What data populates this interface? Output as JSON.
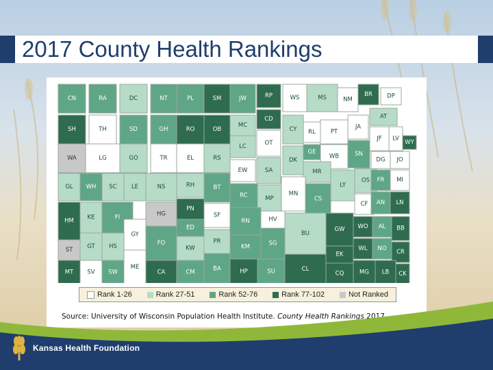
{
  "slide": {
    "title": "2017 County Health Rankings",
    "source_prefix": "Source: University of Wisconsin Population Health Institute.",
    "source_italic": "County Health Rankings",
    "source_year": "2017",
    "org_name": "Kansas Health Foundation",
    "colors": {
      "title_blue": "#1f3e6e",
      "rank_1_26": "#ffffff",
      "rank_27_51": "#b6dcc8",
      "rank_52_76": "#5fa687",
      "rank_77_102": "#2f6b4f",
      "not_ranked": "#c8c8c8",
      "footer_green": "#8fb83a",
      "footer_blue": "#1f3e6e"
    }
  },
  "legend": [
    {
      "label": "Rank 1-26",
      "category": "r1"
    },
    {
      "label": "Rank 27-51",
      "category": "r2"
    },
    {
      "label": "Rank 52-76",
      "category": "r3"
    },
    {
      "label": "Rank 77-102",
      "category": "r4"
    },
    {
      "label": "Not Ranked",
      "category": "nr"
    }
  ],
  "counties": [
    {
      "code": "CN",
      "rank": "r3"
    },
    {
      "code": "RA",
      "rank": "r3"
    },
    {
      "code": "DC",
      "rank": "r2"
    },
    {
      "code": "NT",
      "rank": "r3"
    },
    {
      "code": "PL",
      "rank": "r3"
    },
    {
      "code": "SM",
      "rank": "r4"
    },
    {
      "code": "JW",
      "rank": "r3"
    },
    {
      "code": "RP",
      "rank": "r4"
    },
    {
      "code": "WS",
      "rank": "r1"
    },
    {
      "code": "MS",
      "rank": "r2"
    },
    {
      "code": "NM",
      "rank": "r1"
    },
    {
      "code": "BR",
      "rank": "r4"
    },
    {
      "code": "DP",
      "rank": "r1"
    },
    {
      "code": "SH",
      "rank": "r4"
    },
    {
      "code": "TH",
      "rank": "r1"
    },
    {
      "code": "SD",
      "rank": "r3"
    },
    {
      "code": "GH",
      "rank": "r3"
    },
    {
      "code": "RO",
      "rank": "r4"
    },
    {
      "code": "OB",
      "rank": "r4"
    },
    {
      "code": "MC",
      "rank": "r2"
    },
    {
      "code": "CD",
      "rank": "r4"
    },
    {
      "code": "CY",
      "rank": "r2"
    },
    {
      "code": "RL",
      "rank": "r1"
    },
    {
      "code": "PT",
      "rank": "r1"
    },
    {
      "code": "JA",
      "rank": "r1"
    },
    {
      "code": "AT",
      "rank": "r2"
    },
    {
      "code": "WA",
      "rank": "nr"
    },
    {
      "code": "LG",
      "rank": "r1"
    },
    {
      "code": "GO",
      "rank": "r2"
    },
    {
      "code": "TR",
      "rank": "r1"
    },
    {
      "code": "EL",
      "rank": "r1"
    },
    {
      "code": "RS",
      "rank": "r2"
    },
    {
      "code": "LC",
      "rank": "r2"
    },
    {
      "code": "OT",
      "rank": "r1"
    },
    {
      "code": "GE",
      "rank": "r3"
    },
    {
      "code": "WB",
      "rank": "r1"
    },
    {
      "code": "SN",
      "rank": "r3"
    },
    {
      "code": "JF",
      "rank": "r1"
    },
    {
      "code": "LV",
      "rank": "r1"
    },
    {
      "code": "WY",
      "rank": "r4"
    },
    {
      "code": "DK",
      "rank": "r2"
    },
    {
      "code": "DG",
      "rank": "r1"
    },
    {
      "code": "JO",
      "rank": "r1"
    },
    {
      "code": "GL",
      "rank": "r2"
    },
    {
      "code": "WH",
      "rank": "r3"
    },
    {
      "code": "SC",
      "rank": "r2"
    },
    {
      "code": "LE",
      "rank": "r2"
    },
    {
      "code": "NS",
      "rank": "r2"
    },
    {
      "code": "RH",
      "rank": "r2"
    },
    {
      "code": "BT",
      "rank": "r3"
    },
    {
      "code": "EW",
      "rank": "r1"
    },
    {
      "code": "SA",
      "rank": "r2"
    },
    {
      "code": "MR",
      "rank": "r2"
    },
    {
      "code": "LY",
      "rank": "r2"
    },
    {
      "code": "OS",
      "rank": "r2"
    },
    {
      "code": "FR",
      "rank": "r3"
    },
    {
      "code": "MI",
      "rank": "r1"
    },
    {
      "code": "RC",
      "rank": "r3"
    },
    {
      "code": "MP",
      "rank": "r2"
    },
    {
      "code": "MN",
      "rank": "r1"
    },
    {
      "code": "CS",
      "rank": "r3"
    },
    {
      "code": "CF",
      "rank": "r1"
    },
    {
      "code": "AN",
      "rank": "r3"
    },
    {
      "code": "LN",
      "rank": "r4"
    },
    {
      "code": "HM",
      "rank": "r4"
    },
    {
      "code": "KE",
      "rank": "r2"
    },
    {
      "code": "FI",
      "rank": "r3"
    },
    {
      "code": "HG",
      "rank": "nr"
    },
    {
      "code": "PN",
      "rank": "r4"
    },
    {
      "code": "SF",
      "rank": "r1"
    },
    {
      "code": "RN",
      "rank": "r3"
    },
    {
      "code": "HV",
      "rank": "r1"
    },
    {
      "code": "BU",
      "rank": "r2"
    },
    {
      "code": "GW",
      "rank": "r4"
    },
    {
      "code": "WO",
      "rank": "r4"
    },
    {
      "code": "AL",
      "rank": "r3"
    },
    {
      "code": "BB",
      "rank": "r4"
    },
    {
      "code": "ED",
      "rank": "r3"
    },
    {
      "code": "GY",
      "rank": "r1"
    },
    {
      "code": "ST",
      "rank": "nr"
    },
    {
      "code": "GT",
      "rank": "r2"
    },
    {
      "code": "HS",
      "rank": "r2"
    },
    {
      "code": "FO",
      "rank": "r3"
    },
    {
      "code": "KW",
      "rank": "r2"
    },
    {
      "code": "PR",
      "rank": "r2"
    },
    {
      "code": "KM",
      "rank": "r3"
    },
    {
      "code": "SG",
      "rank": "r3"
    },
    {
      "code": "WL",
      "rank": "r4"
    },
    {
      "code": "NO",
      "rank": "r3"
    },
    {
      "code": "CR",
      "rank": "r4"
    },
    {
      "code": "EK",
      "rank": "r4"
    },
    {
      "code": "MT",
      "rank": "r4"
    },
    {
      "code": "SV",
      "rank": "r1"
    },
    {
      "code": "SW",
      "rank": "r3"
    },
    {
      "code": "ME",
      "rank": "r1"
    },
    {
      "code": "CA",
      "rank": "r4"
    },
    {
      "code": "CM",
      "rank": "r3"
    },
    {
      "code": "BA",
      "rank": "r3"
    },
    {
      "code": "HP",
      "rank": "r4"
    },
    {
      "code": "SU",
      "rank": "r3"
    },
    {
      "code": "CL",
      "rank": "r4"
    },
    {
      "code": "CQ",
      "rank": "r4"
    },
    {
      "code": "MG",
      "rank": "r4"
    },
    {
      "code": "LB",
      "rank": "r4"
    },
    {
      "code": "CK",
      "rank": "r4"
    }
  ]
}
